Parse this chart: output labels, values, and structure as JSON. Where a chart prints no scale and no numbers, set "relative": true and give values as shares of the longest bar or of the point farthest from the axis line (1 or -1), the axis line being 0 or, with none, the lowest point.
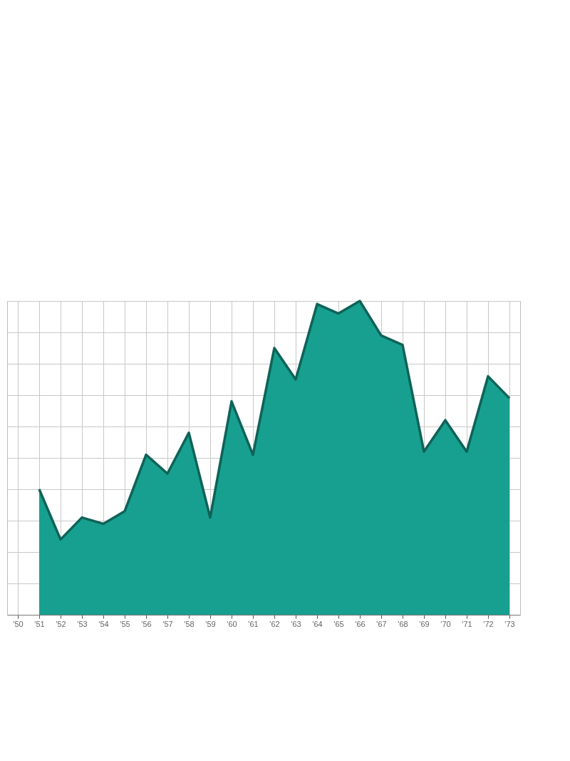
{
  "chart_data": {
    "type": "area",
    "categories": [
      "'50",
      "'51",
      "'52",
      "'53",
      "'54",
      "'55",
      "'56",
      "'57",
      "'58",
      "'59",
      "'60",
      "'61",
      "'62",
      "'63",
      "'64",
      "'65",
      "'66",
      "'67",
      "'68",
      "'69",
      "'70",
      "'71",
      "'72",
      "'73"
    ],
    "values": [
      null,
      0.4,
      0.24,
      0.31,
      0.29,
      0.33,
      0.51,
      0.45,
      0.58,
      0.31,
      0.68,
      0.51,
      0.85,
      0.75,
      0.99,
      0.96,
      1.0,
      0.89,
      0.86,
      0.52,
      0.62,
      0.52,
      0.76,
      0.69
    ],
    "color": "#17a08f",
    "relative": true,
    "grid": true
  }
}
